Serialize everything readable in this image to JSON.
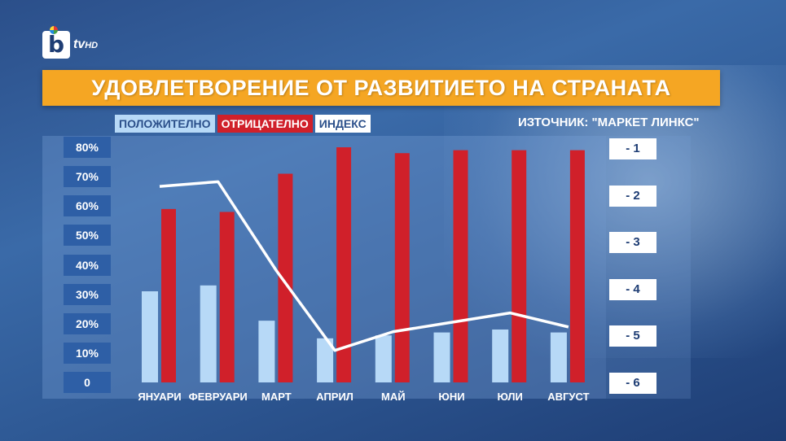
{
  "logo": {
    "mark": "b",
    "text": "tv",
    "suffix": "HD"
  },
  "title": "УДОВЛЕТВОРЕНИЕ ОТ РАЗВИТИЕТО НА СТРАНАТА",
  "legend": {
    "positive": "ПОЛОЖИТЕЛНО",
    "negative": "ОТРИЦАТЕЛНО",
    "index": "ИНДЕКС"
  },
  "source": "ИЗТОЧНИК: \"МАРКЕТ ЛИНКС\"",
  "colors": {
    "positive": "#b7d9f7",
    "negative": "#d0202a",
    "index": "#ffffff",
    "title_bg": "#f5a623"
  },
  "chart_data": {
    "type": "bar",
    "categories": [
      "ЯНУАРИ",
      "ФЕВРУАРИ",
      "МАРТ",
      "АПРИЛ",
      "МАЙ",
      "ЮНИ",
      "ЮЛИ",
      "АВГУСТ"
    ],
    "series": [
      {
        "name": "ПОЛОЖИТЕЛНО",
        "type": "bar",
        "axis": "left",
        "values": [
          31,
          33,
          21,
          15,
          16,
          17,
          18,
          17
        ]
      },
      {
        "name": "ОТРИЦАТЕЛНО",
        "type": "bar",
        "axis": "left",
        "values": [
          59,
          58,
          71,
          80,
          78,
          79,
          79,
          79
        ]
      },
      {
        "name": "ИНДЕКС",
        "type": "line",
        "axis": "right",
        "values": [
          -1.8,
          -1.7,
          -3.6,
          -5.3,
          -4.9,
          -4.7,
          -4.5,
          -4.8
        ]
      }
    ],
    "ylim": [
      0,
      80
    ],
    "y_ticks": [
      "80%",
      "70%",
      "60%",
      "50%",
      "40%",
      "30%",
      "20%",
      "10%",
      "0"
    ],
    "y2lim": [
      -6,
      -1
    ],
    "y2_ticks": [
      "- 1",
      "- 2",
      "- 3",
      "- 4",
      "- 5",
      "- 6"
    ],
    "legend_position": "top-left"
  }
}
